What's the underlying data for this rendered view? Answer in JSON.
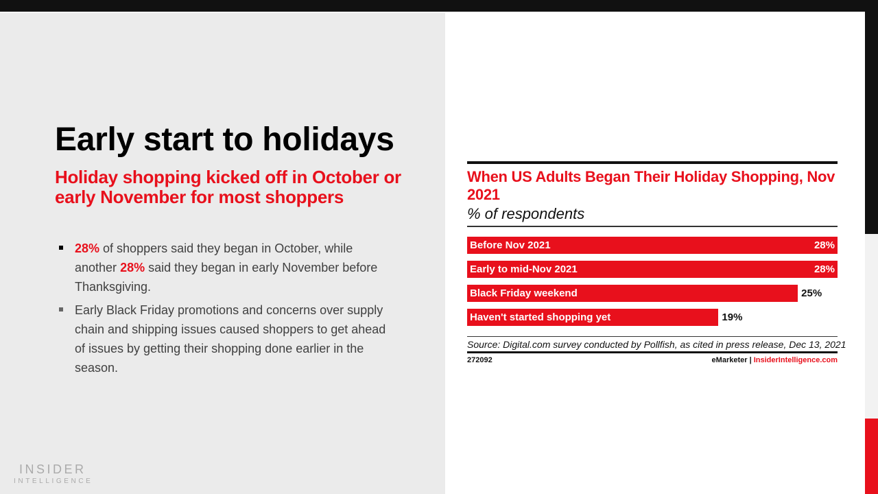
{
  "slide": {
    "title": "Early start to holidays",
    "subtitle": "Holiday shopping kicked off in October or early November for most shoppers",
    "bullets": [
      {
        "pre": "",
        "hl1": "28%",
        "mid": " of shoppers said they began in October, while another ",
        "hl2": "28%",
        "post": " said they began in early November before Thanksgiving."
      },
      {
        "text": "Early Black Friday promotions and concerns over supply chain and shipping issues caused shoppers to get ahead of issues by getting their shopping done earlier in the season."
      }
    ],
    "logo": {
      "line1": "INSIDER",
      "line2": "INTELLIGENCE"
    }
  },
  "colors": {
    "accent": "#e8101c",
    "dark": "#111111",
    "panel": "#ebebeb"
  },
  "chart_data": {
    "type": "bar",
    "orientation": "horizontal",
    "title": "When US Adults Began Their Holiday Shopping, Nov 2021",
    "subtitle": "% of respondents",
    "categories": [
      "Before Nov 2021",
      "Early to mid-Nov 2021",
      "Black Friday weekend",
      "Haven't started shopping yet"
    ],
    "values": [
      28,
      28,
      25,
      19
    ],
    "value_labels": [
      "28%",
      "28%",
      "25%",
      "19%"
    ],
    "unit": "%",
    "source": "Source: Digital.com survey conducted by Pollfish, as cited in press release, Dec 13, 2021",
    "chart_id": "272092",
    "brand_left": "eMarketer",
    "brand_sep": "|",
    "brand_right": "InsiderIntelligence.com"
  }
}
